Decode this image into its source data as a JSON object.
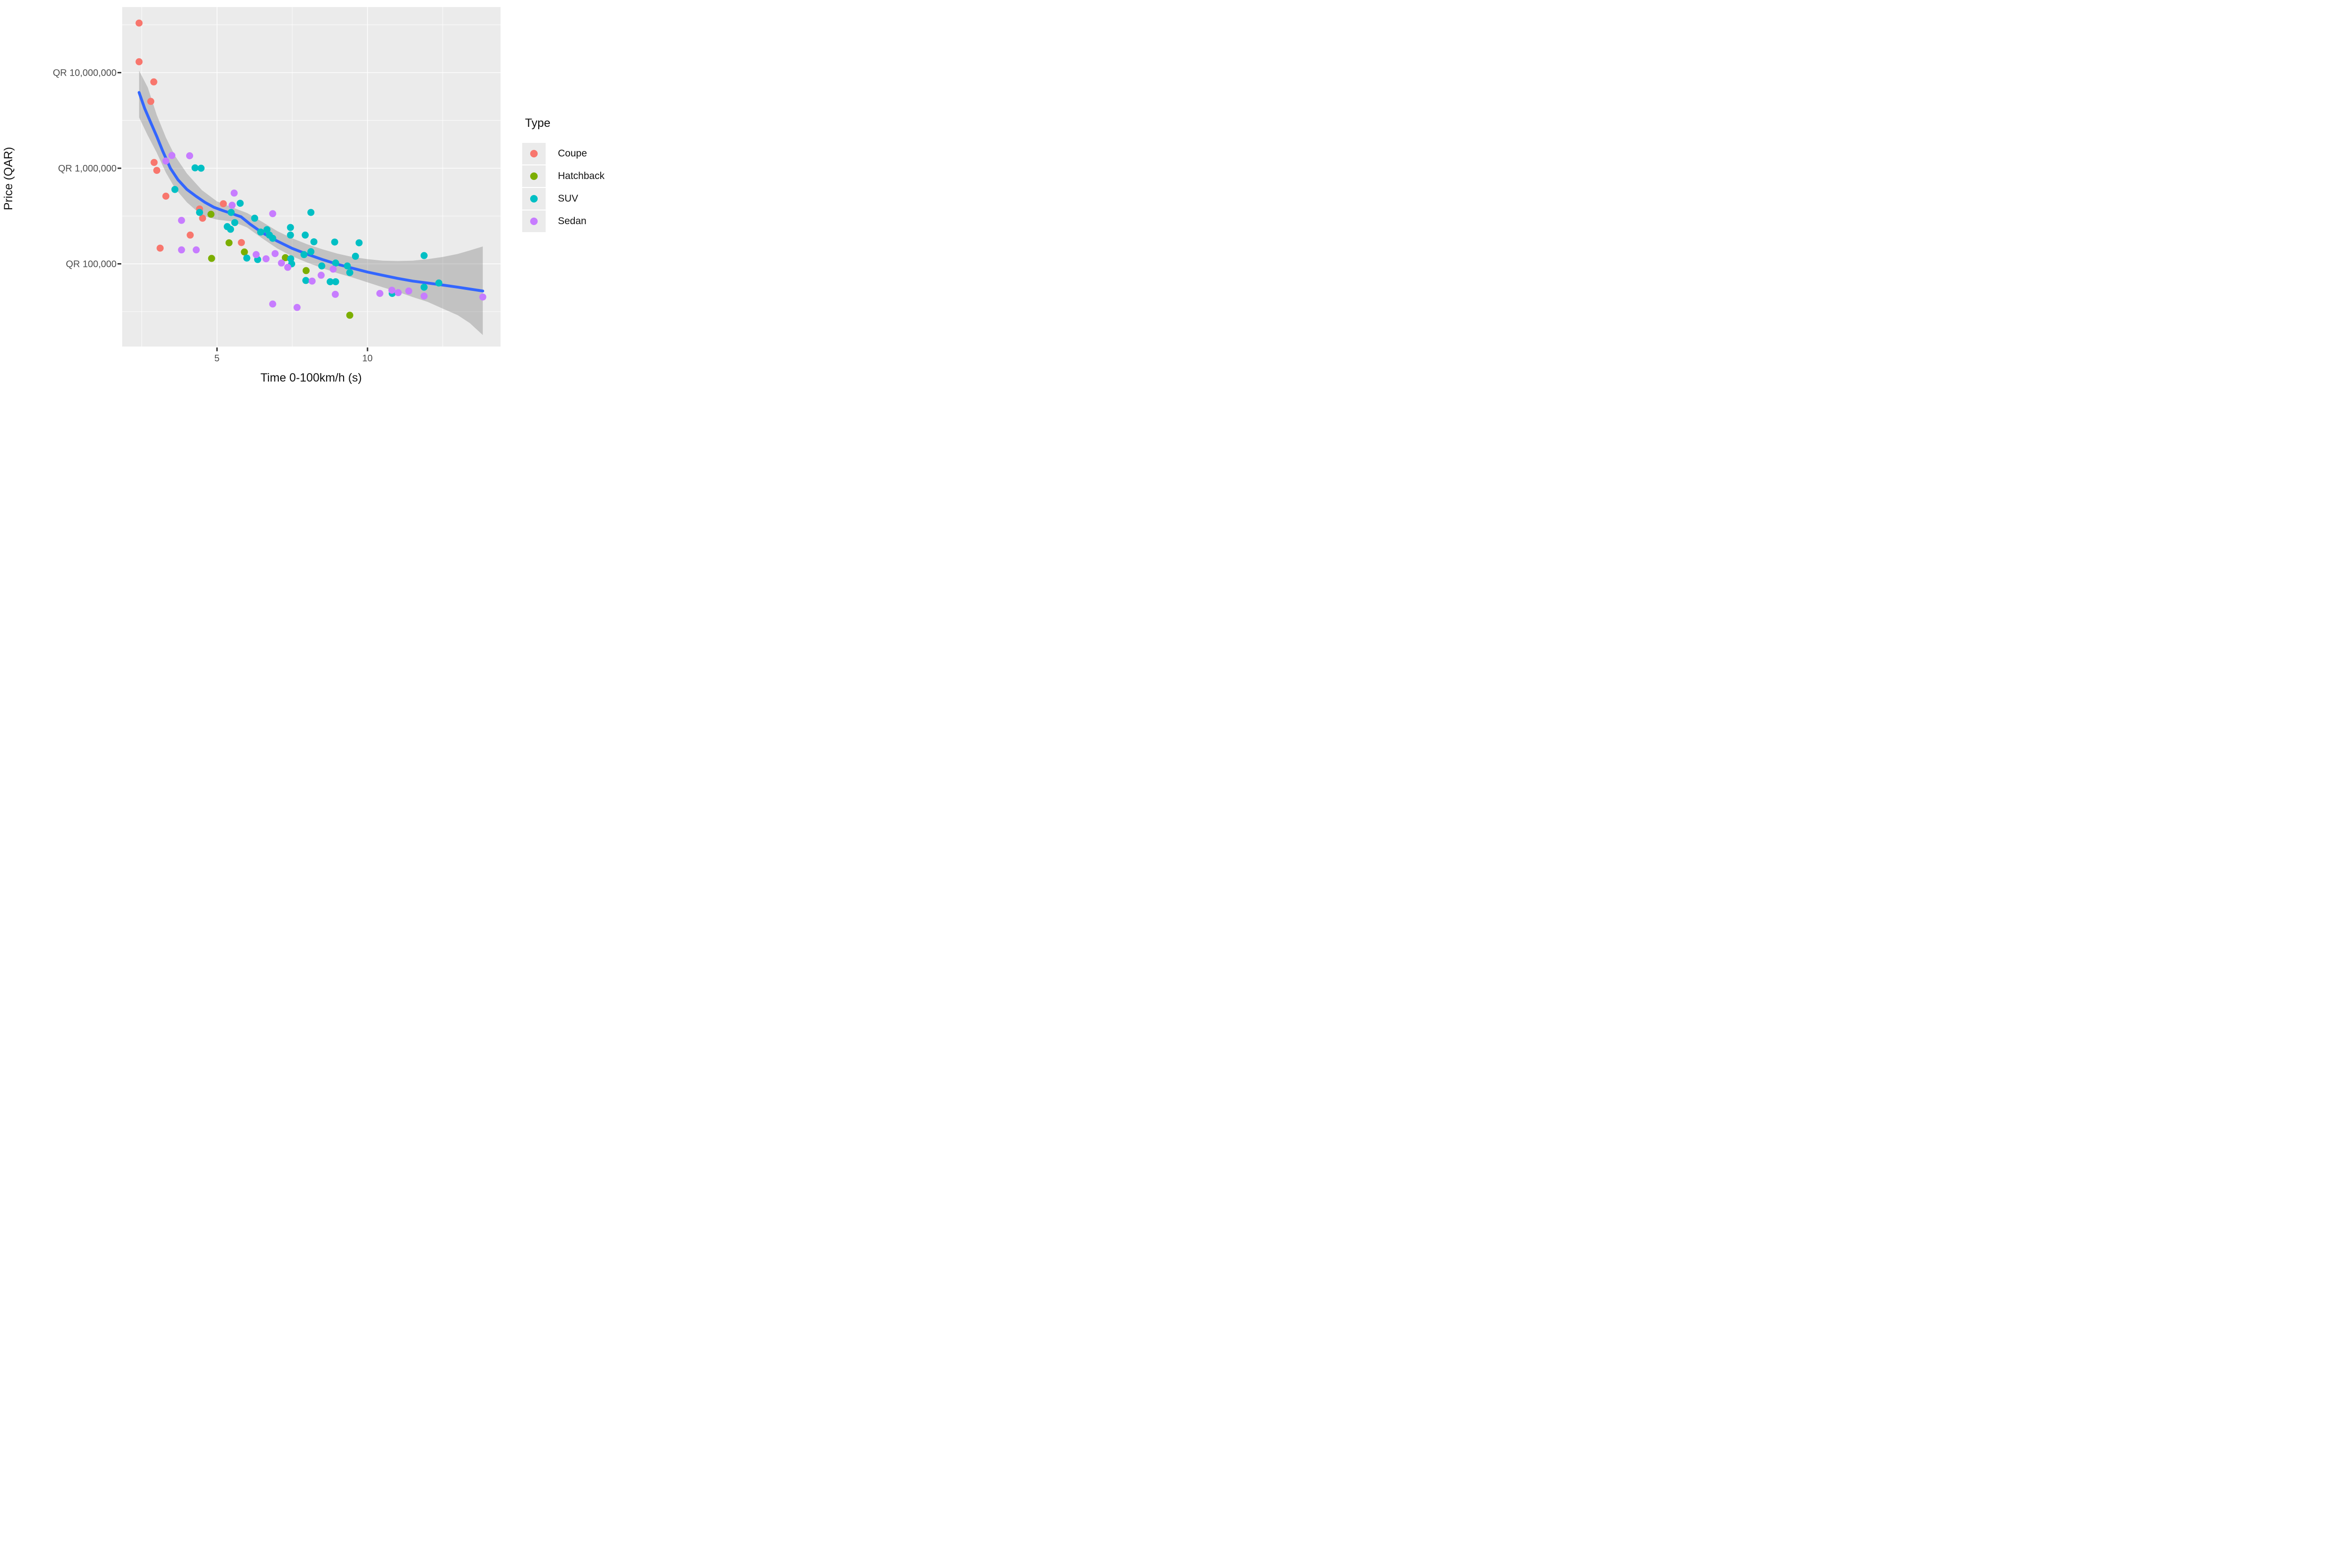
{
  "legend": {
    "title": "Type"
  },
  "colors": {
    "panel_background": "#EBEBEB",
    "gridline": "#FFFFFF",
    "smooth_line": "#3366FF",
    "ribbon": "rgba(100,100,100,0.30)",
    "tick_text": "#4D4D4D",
    "axis_text": "#111111",
    "tick_mark": "#333333"
  },
  "chart_data": {
    "type": "scatter",
    "title": "",
    "xlabel": "Time 0-100km/h (s)",
    "ylabel": "Price (QAR)",
    "x_axis": {
      "range": [
        1.85,
        14.42
      ],
      "ticks": [
        {
          "value": 5,
          "label": "5"
        },
        {
          "value": 10,
          "label": "10"
        }
      ],
      "minor_ticks": [
        2.5,
        7.5,
        12.5
      ]
    },
    "y_axis": {
      "scale": "log10",
      "log_range": [
        4.135,
        7.686
      ],
      "ticks": [
        {
          "value": 10000000,
          "label": "QR 10,000,000"
        },
        {
          "value": 1000000,
          "label": "QR 1,000,000"
        },
        {
          "value": 100000,
          "label": "QR 100,000"
        }
      ],
      "minor_ticks": [
        31623000,
        3162300,
        316230,
        31623
      ]
    },
    "legend_position": "right",
    "grid": true,
    "series": [
      {
        "name": "Coupe",
        "color": "#F8766D",
        "points": [
          [
            2.41,
            33000000
          ],
          [
            2.41,
            13000000
          ],
          [
            2.9,
            8000000
          ],
          [
            2.8,
            5000000
          ],
          [
            2.91,
            1150000
          ],
          [
            3.0,
            950000
          ],
          [
            3.3,
            510000
          ],
          [
            4.42,
            375000
          ],
          [
            4.52,
            300000
          ],
          [
            4.11,
            200000
          ],
          [
            3.11,
            146000
          ],
          [
            5.21,
            425000
          ],
          [
            5.81,
            167000
          ]
        ]
      },
      {
        "name": "Hatchback",
        "color": "#7CAE00",
        "points": [
          [
            4.8,
            330000
          ],
          [
            4.82,
            114000
          ],
          [
            5.4,
            166000
          ],
          [
            5.91,
            133000
          ],
          [
            7.27,
            116000
          ],
          [
            7.96,
            85000
          ],
          [
            9.41,
            29000
          ]
        ]
      },
      {
        "name": "SUV",
        "color": "#00BFC4",
        "points": [
          [
            3.6,
            600000
          ],
          [
            4.27,
            1010000
          ],
          [
            4.47,
            1000000
          ],
          [
            4.42,
            345000
          ],
          [
            5.47,
            345000
          ],
          [
            5.59,
            270000
          ],
          [
            5.34,
            245000
          ],
          [
            5.45,
            230000
          ],
          [
            5.77,
            430000
          ],
          [
            5.99,
            115000
          ],
          [
            6.25,
            300000
          ],
          [
            6.45,
            215000
          ],
          [
            6.66,
            228000
          ],
          [
            6.74,
            200000
          ],
          [
            6.85,
            185000
          ],
          [
            6.35,
            111000
          ],
          [
            7.44,
            240000
          ],
          [
            7.44,
            200000
          ],
          [
            7.93,
            200000
          ],
          [
            8.12,
            345000
          ],
          [
            8.22,
            170000
          ],
          [
            8.12,
            134000
          ],
          [
            7.45,
            113000
          ],
          [
            7.48,
            100000
          ],
          [
            7.89,
            125000
          ],
          [
            7.95,
            67000
          ],
          [
            8.48,
            95000
          ],
          [
            8.94,
            102000
          ],
          [
            8.76,
            65000
          ],
          [
            8.94,
            65000
          ],
          [
            8.91,
            169000
          ],
          [
            9.72,
            166000
          ],
          [
            9.6,
            120000
          ],
          [
            9.33,
            95000
          ],
          [
            9.41,
            81000
          ],
          [
            10.82,
            49000
          ],
          [
            11.88,
            122000
          ],
          [
            12.37,
            63000
          ],
          [
            11.88,
            57000
          ]
        ]
      },
      {
        "name": "Sedan",
        "color": "#C77CFF",
        "points": [
          [
            3.5,
            1360000
          ],
          [
            3.3,
            1190000
          ],
          [
            4.09,
            1350000
          ],
          [
            5.57,
            550000
          ],
          [
            5.5,
            410000
          ],
          [
            3.82,
            285000
          ],
          [
            3.82,
            140000
          ],
          [
            4.31,
            140000
          ],
          [
            6.3,
            125000
          ],
          [
            6.63,
            113000
          ],
          [
            6.85,
            335000
          ],
          [
            6.93,
            128000
          ],
          [
            7.14,
            102000
          ],
          [
            7.35,
            92000
          ],
          [
            8.16,
            66000
          ],
          [
            8.46,
            76000
          ],
          [
            8.86,
            88000
          ],
          [
            8.93,
            48000
          ],
          [
            6.85,
            38000
          ],
          [
            7.66,
            35000
          ],
          [
            10.41,
            49000
          ],
          [
            10.81,
            53000
          ],
          [
            11.02,
            50000
          ],
          [
            11.37,
            52000
          ],
          [
            11.88,
            46000
          ],
          [
            13.83,
            45000
          ]
        ]
      }
    ],
    "smooth": {
      "color": "#3366FF",
      "line": [
        [
          2.41,
          6200000
        ],
        [
          2.6,
          4200000
        ],
        [
          2.8,
          3000000
        ],
        [
          3.0,
          2150000
        ],
        [
          3.2,
          1500000
        ],
        [
          3.45,
          1000000
        ],
        [
          3.7,
          760000
        ],
        [
          4.0,
          600000
        ],
        [
          4.3,
          510000
        ],
        [
          4.6,
          440000
        ],
        [
          4.9,
          390000
        ],
        [
          5.2,
          360000
        ],
        [
          5.5,
          335000
        ],
        [
          5.8,
          310000
        ],
        [
          6.1,
          260000
        ],
        [
          6.5,
          212000
        ],
        [
          7.0,
          173000
        ],
        [
          7.5,
          145000
        ],
        [
          8.0,
          126000
        ],
        [
          8.5,
          111000
        ],
        [
          9.0,
          99000
        ],
        [
          9.5,
          90000
        ],
        [
          10.0,
          82000
        ],
        [
          10.5,
          76000
        ],
        [
          11.0,
          70500
        ],
        [
          11.5,
          66000
        ],
        [
          12.0,
          63000
        ],
        [
          12.5,
          60000
        ],
        [
          13.0,
          57000
        ],
        [
          13.4,
          54500
        ],
        [
          13.83,
          52000
        ]
      ],
      "band": [
        [
          2.41,
          3400000,
          10500000
        ],
        [
          2.7,
          2200000,
          7000000
        ],
        [
          3.0,
          1450000,
          3600000
        ],
        [
          3.3,
          900000,
          2100000
        ],
        [
          3.6,
          620000,
          1350000
        ],
        [
          4.0,
          440000,
          880000
        ],
        [
          4.5,
          320000,
          590000
        ],
        [
          5.0,
          290000,
          450000
        ],
        [
          5.5,
          278000,
          390000
        ],
        [
          6.0,
          240000,
          340000
        ],
        [
          6.5,
          185000,
          275000
        ],
        [
          7.0,
          145000,
          220000
        ],
        [
          7.5,
          120000,
          185000
        ],
        [
          8.0,
          103000,
          160000
        ],
        [
          8.5,
          90000,
          142000
        ],
        [
          9.0,
          80000,
          128000
        ],
        [
          9.5,
          72000,
          118000
        ],
        [
          10.0,
          64000,
          112000
        ],
        [
          10.5,
          57000,
          108000
        ],
        [
          11.0,
          51000,
          107000
        ],
        [
          11.5,
          45000,
          108000
        ],
        [
          12.0,
          40000,
          112000
        ],
        [
          12.5,
          34000,
          118000
        ],
        [
          13.0,
          29000,
          127000
        ],
        [
          13.4,
          24000,
          138000
        ],
        [
          13.83,
          18000,
          152000
        ]
      ]
    }
  }
}
